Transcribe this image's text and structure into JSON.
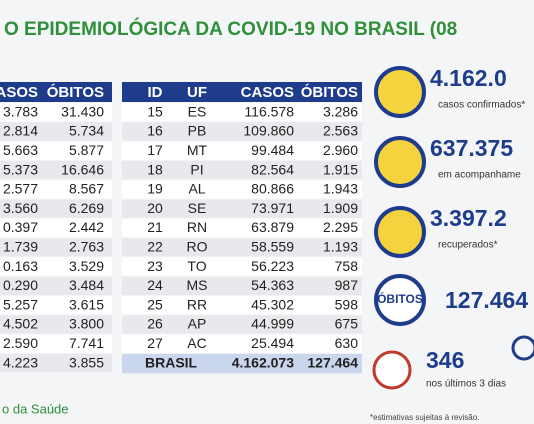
{
  "title": "O EPIDEMIOLÓGICA DA COVID-19 NO BRASIL (08",
  "left_table": {
    "header": [
      "ASOS",
      "ÓBITOS"
    ],
    "rows": [
      [
        "3.783",
        "31.430"
      ],
      [
        "2.814",
        "5.734"
      ],
      [
        "5.663",
        "5.877"
      ],
      [
        "5.373",
        "16.646"
      ],
      [
        "2.577",
        "8.567"
      ],
      [
        "3.560",
        "6.269"
      ],
      [
        "0.397",
        "2.442"
      ],
      [
        "1.739",
        "2.763"
      ],
      [
        "0.163",
        "3.529"
      ],
      [
        "0.290",
        "3.484"
      ],
      [
        "5.257",
        "3.615"
      ],
      [
        "4.502",
        "3.800"
      ],
      [
        "2.590",
        "7.741"
      ],
      [
        "4.223",
        "3.855"
      ]
    ]
  },
  "right_table": {
    "header": [
      "ID",
      "UF",
      "CASOS",
      "ÓBITOS"
    ],
    "rows": [
      [
        "15",
        "ES",
        "116.578",
        "3.286"
      ],
      [
        "16",
        "PB",
        "109.860",
        "2.563"
      ],
      [
        "17",
        "MT",
        "99.484",
        "2.960"
      ],
      [
        "18",
        "PI",
        "82.564",
        "1.915"
      ],
      [
        "19",
        "AL",
        "80.866",
        "1.943"
      ],
      [
        "20",
        "SE",
        "73.971",
        "1.909"
      ],
      [
        "21",
        "RN",
        "63.879",
        "2.295"
      ],
      [
        "22",
        "RO",
        "58.559",
        "1.193"
      ],
      [
        "23",
        "TO",
        "56.223",
        "758"
      ],
      [
        "24",
        "MS",
        "54.363",
        "987"
      ],
      [
        "25",
        "RR",
        "45.302",
        "598"
      ],
      [
        "26",
        "AP",
        "44.999",
        "675"
      ],
      [
        "27",
        "AC",
        "25.494",
        "630"
      ]
    ],
    "total": [
      "BRASIL",
      "4.162.073",
      "127.464"
    ]
  },
  "summary": [
    {
      "value": "4.162.0",
      "label": "casos confirmados*"
    },
    {
      "value": "637.375",
      "label": "em acompanhame"
    },
    {
      "value": "3.397.2",
      "label": "recuperados*"
    }
  ],
  "deaths": {
    "label": "ÓBITOS",
    "value": "127.464"
  },
  "recent": {
    "value": "346",
    "label": "nos últimos 3 dias"
  },
  "footnote": "*estimativas sujeitas à revisão.",
  "source": "o da Saúde"
}
